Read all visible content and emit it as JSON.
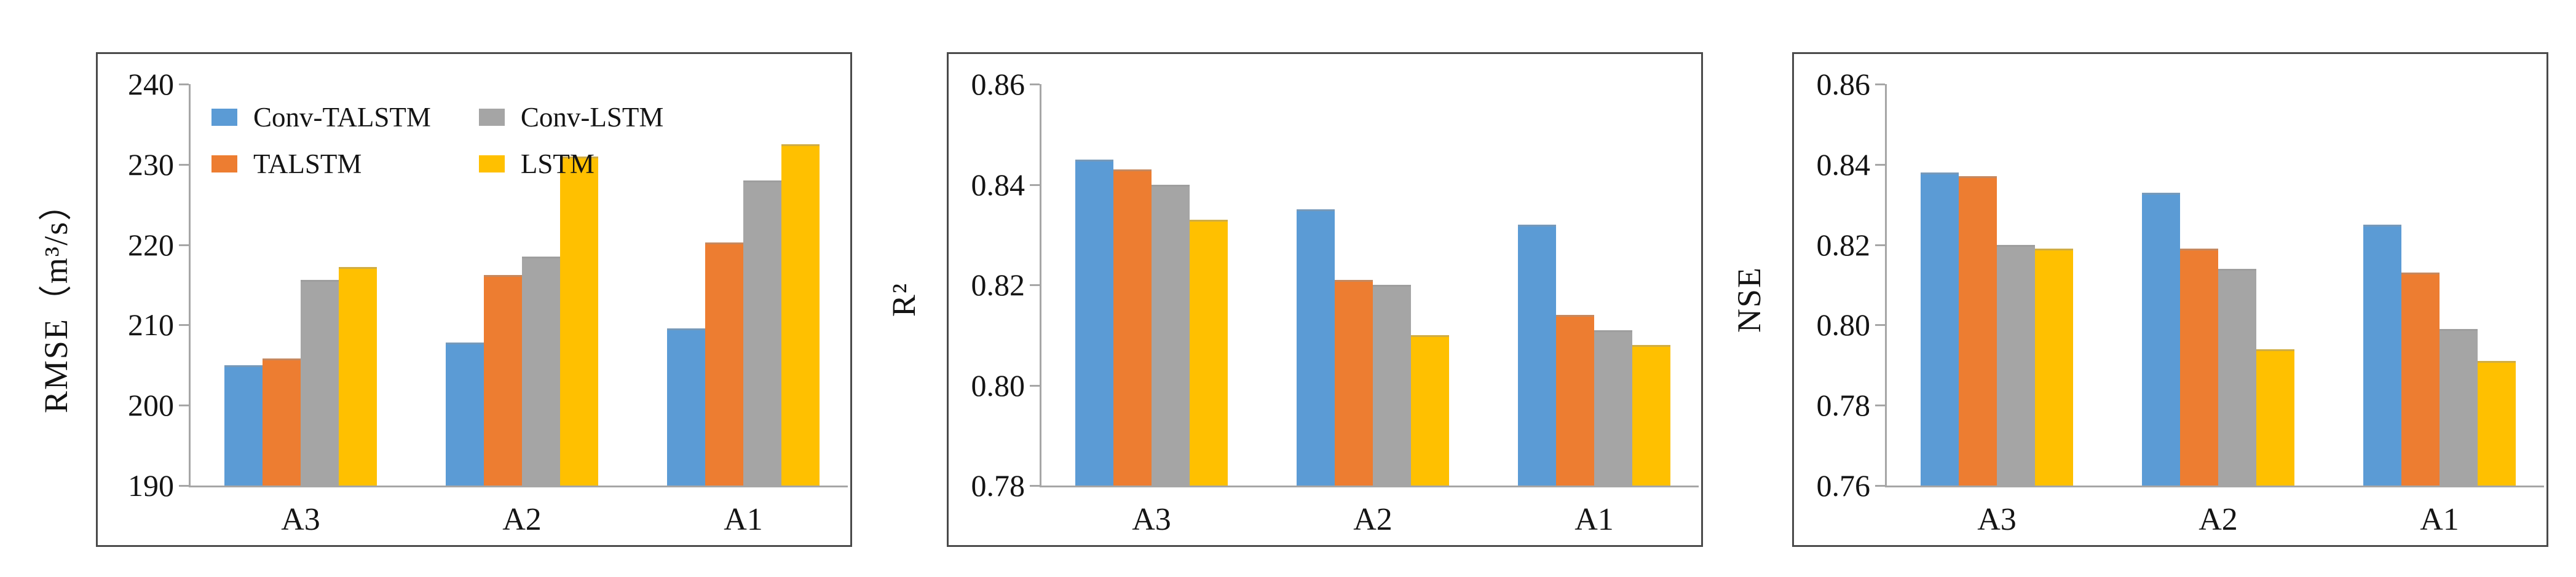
{
  "figure": {
    "background": "#ffffff",
    "text_color": "#141414",
    "frame_color": "#4a4a4a",
    "axis_color": "#a6a6a6"
  },
  "chart_data": [
    {
      "type": "bar",
      "title": "",
      "xlabel": "",
      "ylabel": "RMSE（m³/s）",
      "categories": [
        "A3",
        "A2",
        "A1"
      ],
      "ylim": [
        190,
        240
      ],
      "ytick_labels": [
        "240",
        "230",
        "220",
        "210",
        "200",
        "190"
      ],
      "grid": false,
      "legend_position": "top-left-inside",
      "show_legend": true,
      "legend_rows": [
        [
          "Conv-TALSTM",
          "Conv-LSTM"
        ],
        [
          "TALSTM",
          "LSTM"
        ]
      ],
      "series": [
        {
          "name": "Conv-TALSTM",
          "color": "#5B9BD5",
          "values": [
            205.0,
            207.8,
            209.6
          ]
        },
        {
          "name": "TALSTM",
          "color": "#ED7D31",
          "values": [
            205.8,
            216.2,
            220.3
          ]
        },
        {
          "name": "Conv-LSTM",
          "color": "#A5A5A5",
          "values": [
            215.6,
            218.5,
            228.0
          ]
        },
        {
          "name": "LSTM",
          "color": "#FFC000",
          "values": [
            217.2,
            231.0,
            232.5
          ]
        }
      ]
    },
    {
      "type": "bar",
      "title": "",
      "xlabel": "",
      "ylabel": "R²",
      "categories": [
        "A3",
        "A2",
        "A1"
      ],
      "ylim": [
        0.78,
        0.86
      ],
      "ytick_labels": [
        "0.86",
        "0.84",
        "0.82",
        "0.80",
        "0.78"
      ],
      "grid": false,
      "show_legend": false,
      "series": [
        {
          "name": "Conv-TALSTM",
          "color": "#5B9BD5",
          "values": [
            0.845,
            0.835,
            0.832
          ]
        },
        {
          "name": "TALSTM",
          "color": "#ED7D31",
          "values": [
            0.843,
            0.821,
            0.814
          ]
        },
        {
          "name": "Conv-LSTM",
          "color": "#A5A5A5",
          "values": [
            0.84,
            0.82,
            0.811
          ]
        },
        {
          "name": "LSTM",
          "color": "#FFC000",
          "values": [
            0.833,
            0.81,
            0.808
          ]
        }
      ]
    },
    {
      "type": "bar",
      "title": "",
      "xlabel": "",
      "ylabel": "NSE",
      "categories": [
        "A3",
        "A2",
        "A1"
      ],
      "ylim": [
        0.76,
        0.86
      ],
      "ytick_labels": [
        "0.86",
        "0.84",
        "0.82",
        "0.80",
        "0.78",
        "0.76"
      ],
      "grid": false,
      "show_legend": false,
      "series": [
        {
          "name": "Conv-TALSTM",
          "color": "#5B9BD5",
          "values": [
            0.838,
            0.833,
            0.825
          ]
        },
        {
          "name": "TALSTM",
          "color": "#ED7D31",
          "values": [
            0.837,
            0.819,
            0.813
          ]
        },
        {
          "name": "Conv-LSTM",
          "color": "#A5A5A5",
          "values": [
            0.82,
            0.814,
            0.799
          ]
        },
        {
          "name": "LSTM",
          "color": "#FFC000",
          "values": [
            0.819,
            0.794,
            0.791
          ]
        }
      ]
    }
  ]
}
